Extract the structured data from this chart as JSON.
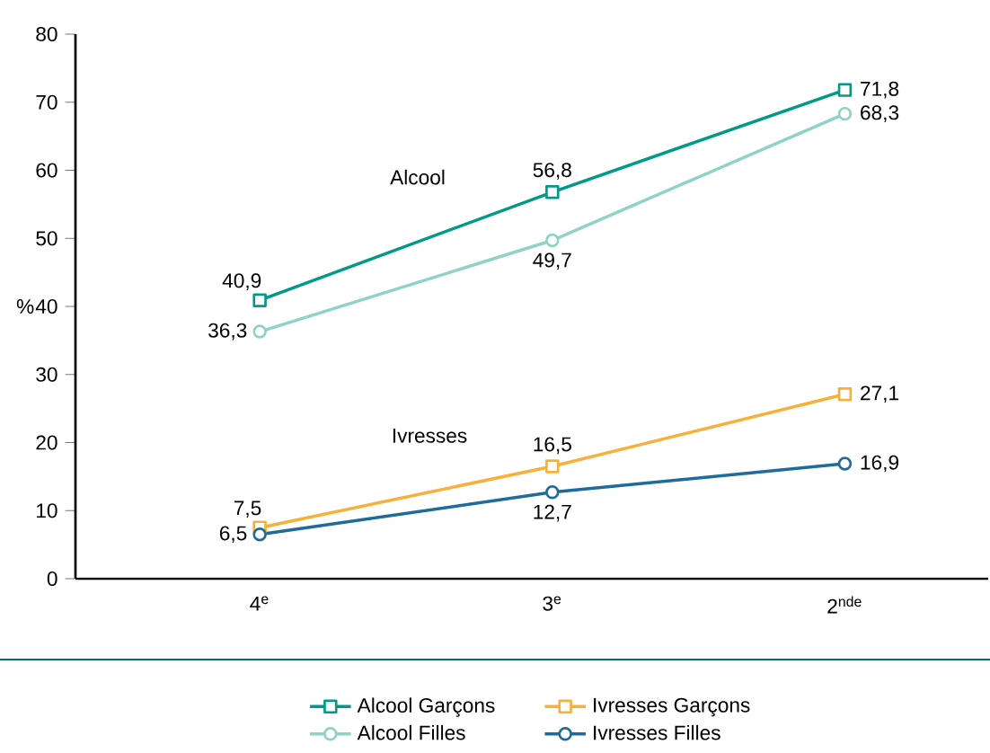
{
  "chart_data": {
    "type": "line",
    "categories": [
      "4$^{e}$",
      "3$^{e}$",
      "2$^{nde}$"
    ],
    "ylabel": "%",
    "ylim": [
      0,
      80
    ],
    "yticks": [
      0,
      10,
      20,
      30,
      40,
      50,
      60,
      70,
      80
    ],
    "grid": false,
    "legend": "bottom",
    "annotations": [
      "Alcool",
      "Ivresses"
    ],
    "series": [
      {
        "name": "Alcool Garçons",
        "color": "#009a87",
        "marker": "square",
        "values": [
          40.9,
          56.8,
          71.8
        ],
        "value_labels": [
          "40,9",
          "56,8",
          "71,8"
        ]
      },
      {
        "name": "Ivresses Garçons",
        "color": "#f7b13b",
        "marker": "square",
        "values": [
          7.5,
          16.5,
          27.1
        ],
        "value_labels": [
          "7,5",
          "16,5",
          "27,1"
        ]
      },
      {
        "name": "Alcool Filles",
        "color": "#8fd2c6",
        "marker": "circle",
        "values": [
          36.3,
          49.7,
          68.3
        ],
        "value_labels": [
          "36,3",
          "49,7",
          "68,3"
        ]
      },
      {
        "name": "Ivresses Filles",
        "color": "#1f6c9c",
        "marker": "circle",
        "values": [
          6.5,
          12.7,
          16.9
        ],
        "value_labels": [
          "6,5",
          "12,7",
          "16,9"
        ]
      }
    ]
  }
}
